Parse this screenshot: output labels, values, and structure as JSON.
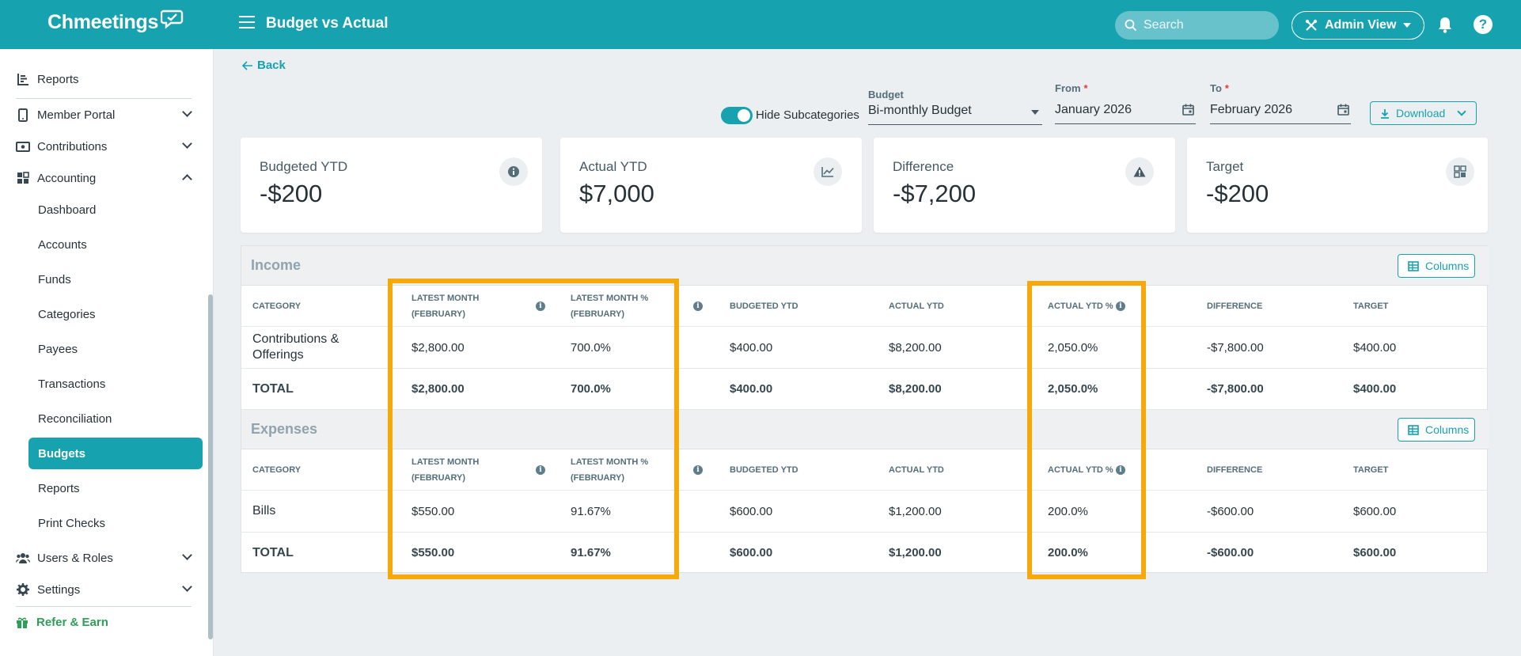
{
  "app": {
    "logo": "Chmeetings",
    "page_title": "Budget vs Actual"
  },
  "header": {
    "search_placeholder": "Search",
    "admin_view_label": "Admin View",
    "help_label": "?"
  },
  "sidebar": {
    "items": [
      {
        "label": "Reports",
        "icon": "report-icon"
      },
      {
        "label": "Member Portal",
        "icon": "phone-icon"
      },
      {
        "label": "Contributions",
        "icon": "cash-icon"
      },
      {
        "label": "Accounting",
        "icon": "grid-icon"
      }
    ],
    "accounting_sub": [
      "Dashboard",
      "Accounts",
      "Funds",
      "Categories",
      "Payees",
      "Transactions",
      "Reconciliation",
      "Budgets",
      "Reports",
      "Print Checks"
    ],
    "bottom_items": [
      {
        "label": "Users & Roles",
        "icon": "users-icon"
      },
      {
        "label": "Settings",
        "icon": "gear-icon"
      }
    ],
    "refer_label": "Refer & Earn",
    "active_item": "Budgets"
  },
  "main": {
    "back_label": "Back",
    "hide_subcategories_label": "Hide Subcategories",
    "hide_subcategories_on": true,
    "budget_field": {
      "label": "Budget",
      "value": "Bi-monthly Budget"
    },
    "from_field": {
      "label": "From",
      "required_mark": "*",
      "value": "January 2026"
    },
    "to_field": {
      "label": "To",
      "required_mark": "*",
      "value": "February 2026"
    },
    "download_label": "Download"
  },
  "cards": [
    {
      "title": "Budgeted YTD",
      "value": "-$200",
      "icon": "info-icon"
    },
    {
      "title": "Actual YTD",
      "value": "$7,000",
      "icon": "line-chart-icon"
    },
    {
      "title": "Difference",
      "value": "-$7,200",
      "icon": "warning-icon"
    },
    {
      "title": "Target",
      "value": "-$200",
      "icon": "qr-grid-icon"
    }
  ],
  "table": {
    "columns_label": "Columns",
    "headers": {
      "category": "CATEGORY",
      "latest_month": [
        "LATEST MONTH",
        "(FEBRUARY)"
      ],
      "latest_month_pct": [
        "LATEST MONTH %",
        "(FEBRUARY)"
      ],
      "budgeted_ytd": "BUDGETED YTD",
      "actual_ytd": "ACTUAL YTD",
      "actual_ytd_pct": "ACTUAL YTD %",
      "difference": "DIFFERENCE",
      "target": "TARGET"
    },
    "income": {
      "title": "Income",
      "rows": [
        {
          "category": [
            "Contributions &",
            "Offerings"
          ],
          "latest_month": "$2,800.00",
          "latest_month_pct": "700.0%",
          "budgeted_ytd": "$400.00",
          "actual_ytd": "$8,200.00",
          "actual_ytd_pct": "2,050.0%",
          "difference": "-$7,800.00",
          "target": "$400.00"
        }
      ],
      "total": {
        "category": "TOTAL",
        "latest_month": "$2,800.00",
        "latest_month_pct": "700.0%",
        "budgeted_ytd": "$400.00",
        "actual_ytd": "$8,200.00",
        "actual_ytd_pct": "2,050.0%",
        "difference": "-$7,800.00",
        "target": "$400.00"
      }
    },
    "expenses": {
      "title": "Expenses",
      "rows": [
        {
          "category": [
            "Bills"
          ],
          "latest_month": "$550.00",
          "latest_month_pct": "91.67%",
          "budgeted_ytd": "$600.00",
          "actual_ytd": "$1,200.00",
          "actual_ytd_pct": "200.0%",
          "difference": "-$600.00",
          "target": "$600.00"
        }
      ],
      "total": {
        "category": "TOTAL",
        "latest_month": "$550.00",
        "latest_month_pct": "91.67%",
        "budgeted_ytd": "$600.00",
        "actual_ytd": "$1,200.00",
        "actual_ytd_pct": "200.0%",
        "difference": "-$600.00",
        "target": "$600.00"
      }
    }
  },
  "colors": {
    "primary": "#17a2b0",
    "highlight": "#f7a90b",
    "refer": "#2e9e58",
    "background": "#eceff1"
  }
}
